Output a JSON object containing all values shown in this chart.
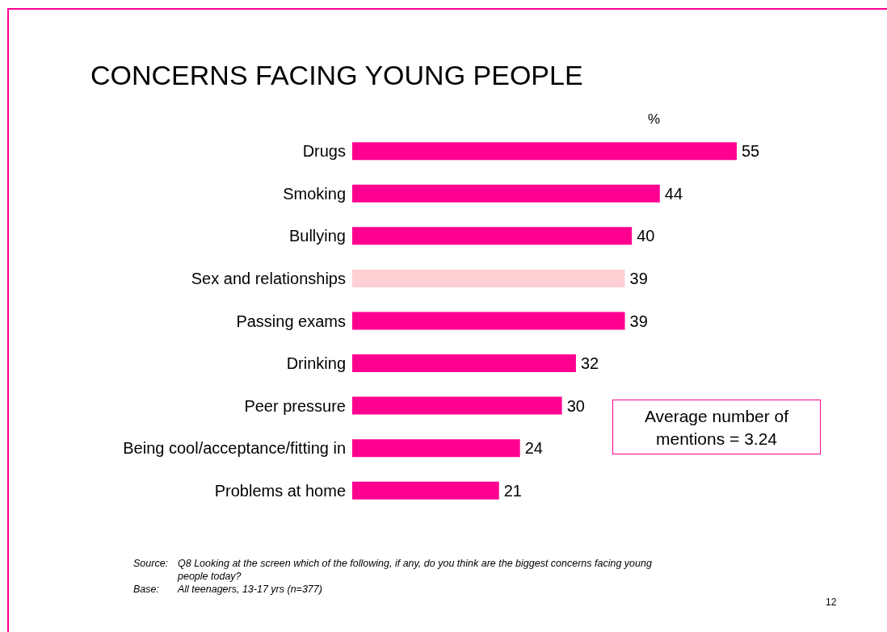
{
  "chart_data": {
    "type": "bar",
    "orientation": "horizontal",
    "title": "CONCERNS FACING YOUNG PEOPLE",
    "xlabel": "%",
    "categories": [
      "Drugs",
      "Smoking",
      "Bullying",
      "Sex and relationships",
      "Passing exams",
      "Drinking",
      "Peer pressure",
      "Being cool/acceptance/fitting in",
      "Problems at home"
    ],
    "values": [
      55,
      44,
      40,
      39,
      39,
      32,
      30,
      24,
      21
    ],
    "colors": [
      "#ff0090",
      "#ff0090",
      "#ff0090",
      "#ffd0d3",
      "#ff0090",
      "#ff0090",
      "#ff0090",
      "#ff0090",
      "#ff0090"
    ],
    "data_labels": true,
    "annotations": [
      "Average number of mentions = 3.24",
      "Source: Q8 Looking at the screen which of the following, if any, do you think are the biggest concerns facing young people today?",
      "Base: All teenagers, 13-17 yrs (n=377)",
      "12"
    ]
  }
}
